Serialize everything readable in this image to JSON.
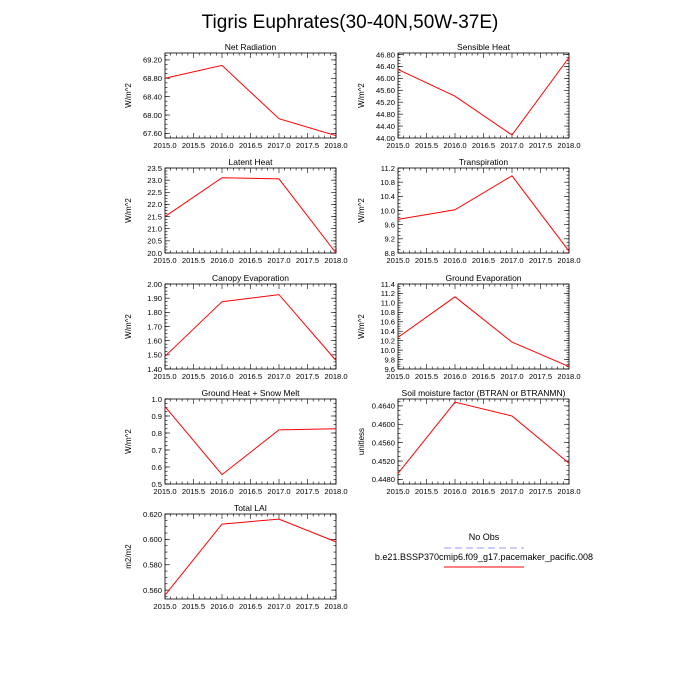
{
  "title": "Tigris Euphrates(30-40N,50W-37E)",
  "legend": {
    "entries": [
      {
        "label": "No Obs",
        "color": "#9999ff",
        "dash": true
      },
      {
        "label": "b.e21.BSSP370cmip6.f09_g17.pacemaker_pacific.008",
        "color": "#ff0000",
        "dash": false
      }
    ]
  },
  "chart_data": [
    {
      "type": "line",
      "title": "Net Radiation",
      "ylabel": "W/m^2",
      "x": [
        2015.0,
        2016.0,
        2017.0,
        2018.0
      ],
      "values": [
        68.8,
        69.08,
        67.92,
        67.55
      ],
      "xlim": [
        2015.0,
        2018.0
      ],
      "ylim": [
        67.5,
        69.35
      ],
      "xticks": [
        "2015.0",
        "2015.5",
        "2016.0",
        "2016.5",
        "2017.0",
        "2017.5",
        "2018.0"
      ],
      "yticks": [
        "67.60",
        "68.00",
        "68.40",
        "68.80",
        "69.20"
      ]
    },
    {
      "type": "line",
      "title": "Sensible Heat",
      "ylabel": "W/m^2",
      "x": [
        2015.0,
        2016.0,
        2017.0,
        2018.0
      ],
      "values": [
        46.3,
        45.4,
        44.1,
        46.7
      ],
      "xlim": [
        2015.0,
        2018.0
      ],
      "ylim": [
        44.0,
        46.85
      ],
      "xticks": [
        "2015.0",
        "2015.5",
        "2016.0",
        "2016.5",
        "2017.0",
        "2017.5",
        "2018.0"
      ],
      "yticks": [
        "44.00",
        "44.40",
        "44.80",
        "45.20",
        "45.60",
        "46.00",
        "46.40",
        "46.80"
      ]
    },
    {
      "type": "line",
      "title": "Latent Heat",
      "ylabel": "W/m^2",
      "x": [
        2015.0,
        2016.0,
        2017.0,
        2018.0
      ],
      "values": [
        21.5,
        23.1,
        23.05,
        20.0
      ],
      "xlim": [
        2015.0,
        2018.0
      ],
      "ylim": [
        20.0,
        23.5
      ],
      "xticks": [
        "2015.0",
        "2015.5",
        "2016.0",
        "2016.5",
        "2017.0",
        "2017.5",
        "2018.0"
      ],
      "yticks": [
        "20.0",
        "20.5",
        "21.0",
        "21.5",
        "22.0",
        "22.5",
        "23.0",
        "23.5"
      ]
    },
    {
      "type": "line",
      "title": "Transpiration",
      "ylabel": "W/m^2",
      "x": [
        2015.0,
        2016.0,
        2017.0,
        2018.0
      ],
      "values": [
        9.75,
        10.02,
        10.98,
        8.85
      ],
      "xlim": [
        2015.0,
        2018.0
      ],
      "ylim": [
        8.8,
        11.2
      ],
      "xticks": [
        "2015.0",
        "2015.5",
        "2016.0",
        "2016.5",
        "2017.0",
        "2017.5",
        "2018.0"
      ],
      "yticks": [
        "8.8",
        "9.2",
        "9.6",
        "10.0",
        "10.4",
        "10.8",
        "11.2"
      ]
    },
    {
      "type": "line",
      "title": "Canopy Evaporation",
      "ylabel": "W/m^2",
      "x": [
        2015.0,
        2016.0,
        2017.0,
        2018.0
      ],
      "values": [
        1.49,
        1.875,
        1.925,
        1.46
      ],
      "xlim": [
        2015.0,
        2018.0
      ],
      "ylim": [
        1.4,
        2.0
      ],
      "xticks": [
        "2015.0",
        "2015.5",
        "2016.0",
        "2016.5",
        "2017.0",
        "2017.5",
        "2018.0"
      ],
      "yticks": [
        "1.40",
        "1.50",
        "1.60",
        "1.70",
        "1.80",
        "1.90",
        "2.00"
      ]
    },
    {
      "type": "line",
      "title": "Ground Evaporation",
      "ylabel": "W/m^2",
      "x": [
        2015.0,
        2016.0,
        2017.0,
        2018.0
      ],
      "values": [
        10.27,
        11.13,
        10.17,
        9.65
      ],
      "xlim": [
        2015.0,
        2018.0
      ],
      "ylim": [
        9.6,
        11.4
      ],
      "xticks": [
        "2015.0",
        "2015.5",
        "2016.0",
        "2016.5",
        "2017.0",
        "2017.5",
        "2018.0"
      ],
      "yticks": [
        "9.6",
        "9.8",
        "10.0",
        "10.2",
        "10.4",
        "10.6",
        "10.8",
        "11.0",
        "11.2",
        "11.4"
      ]
    },
    {
      "type": "line",
      "title": "Ground Heat + Snow Melt",
      "ylabel": "W/m^2",
      "x": [
        2015.0,
        2016.0,
        2017.0,
        2018.0
      ],
      "values": [
        0.955,
        0.555,
        0.818,
        0.825
      ],
      "xlim": [
        2015.0,
        2018.0
      ],
      "ylim": [
        0.5,
        1.0
      ],
      "xticks": [
        "2015.0",
        "2015.5",
        "2016.0",
        "2016.5",
        "2017.0",
        "2017.5",
        "2018.0"
      ],
      "yticks": [
        "0.5",
        "0.6",
        "0.7",
        "0.8",
        "0.9",
        "1.0"
      ]
    },
    {
      "type": "line",
      "title": "Soil moisture factor (BTRAN or BTRANMN)",
      "ylabel": "unitless",
      "x": [
        2015.0,
        2016.0,
        2017.0,
        2018.0
      ],
      "values": [
        0.4493,
        0.4648,
        0.4618,
        0.4515
      ],
      "xlim": [
        2015.0,
        2018.0
      ],
      "ylim": [
        0.447,
        0.4655
      ],
      "xticks": [
        "2015.0",
        "2015.5",
        "2016.0",
        "2016.5",
        "2017.0",
        "2017.5",
        "2018.0"
      ],
      "yticks": [
        "0.4480",
        "0.4520",
        "0.4560",
        "0.4600",
        "0.4640"
      ]
    },
    {
      "type": "line",
      "title": "Total LAI",
      "ylabel": "m2/m2",
      "x": [
        2015.0,
        2016.0,
        2017.0,
        2018.0
      ],
      "values": [
        0.556,
        0.612,
        0.616,
        0.598
      ],
      "xlim": [
        2015.0,
        2018.0
      ],
      "ylim": [
        0.553,
        0.62
      ],
      "xticks": [
        "2015.0",
        "2015.5",
        "2016.0",
        "2016.5",
        "2017.0",
        "2017.5",
        "2018.0"
      ],
      "yticks": [
        "0.560",
        "0.580",
        "0.600",
        "0.620"
      ]
    }
  ]
}
